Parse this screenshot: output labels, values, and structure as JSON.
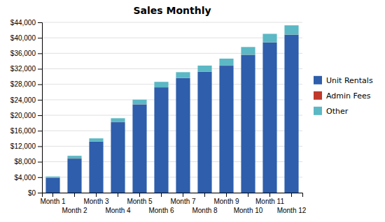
{
  "chart_data": {
    "type": "bar",
    "title": "Sales Monthly",
    "stacked": true,
    "categories": [
      "Month 1",
      "Month 2",
      "Month 3",
      "Month 4",
      "Month 5",
      "Month 6",
      "Month 7",
      "Month 8",
      "Month 9",
      "Month 10",
      "Month 11",
      "Month 12"
    ],
    "series": [
      {
        "name": "Unit Rentals",
        "color": "#2E5EAC",
        "values": [
          3800,
          8800,
          13200,
          18200,
          22800,
          27200,
          29600,
          31200,
          32800,
          35600,
          38800,
          40800
        ]
      },
      {
        "name": "Admin Fees",
        "color": "#C0392B",
        "values": [
          30,
          30,
          30,
          30,
          30,
          30,
          30,
          30,
          30,
          30,
          30,
          30
        ]
      },
      {
        "name": "Other",
        "color": "#5BB8C4",
        "values": [
          350,
          700,
          800,
          1000,
          1200,
          1400,
          1500,
          1600,
          1800,
          2000,
          2200,
          2400
        ]
      }
    ],
    "ylim": [
      0,
      44000
    ],
    "yticks": [
      {
        "value": 0,
        "label": "$0"
      },
      {
        "value": 4000,
        "label": "$4,000"
      },
      {
        "value": 8000,
        "label": "$8,000"
      },
      {
        "value": 12000,
        "label": "$12,000"
      },
      {
        "value": 16000,
        "label": "$16,000"
      },
      {
        "value": 20000,
        "label": "$20,000"
      },
      {
        "value": 24000,
        "label": "$24,000"
      },
      {
        "value": 28000,
        "label": "$28,000"
      },
      {
        "value": 32000,
        "label": "$32,000"
      },
      {
        "value": 36000,
        "label": "$36,000"
      },
      {
        "value": 40000,
        "label": "$40,000"
      },
      {
        "value": 44000,
        "label": "$44,000"
      }
    ],
    "grid": true,
    "legend": "right"
  }
}
